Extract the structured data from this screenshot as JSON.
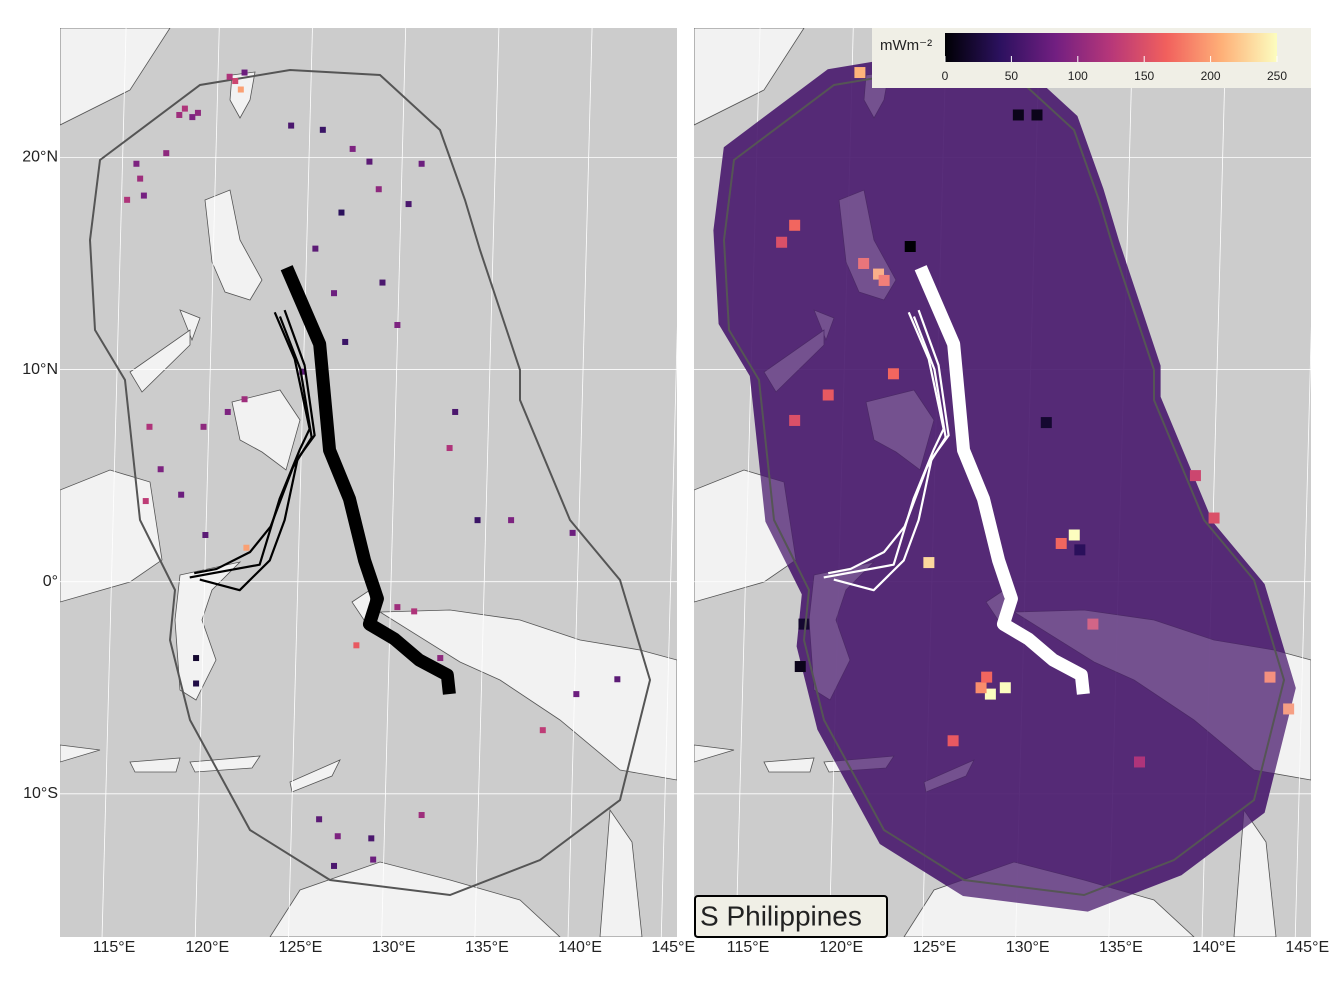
{
  "chart_data": {
    "type": "map",
    "region_label": "S Philippines",
    "xlim": [
      112.1,
      145.2
    ],
    "ylim": [
      -16.75,
      26.1
    ],
    "xticks": [
      {
        "value": 115,
        "label": "115°E"
      },
      {
        "value": 120,
        "label": "120°E"
      },
      {
        "value": 125,
        "label": "125°E"
      },
      {
        "value": 130,
        "label": "130°E"
      },
      {
        "value": 135,
        "label": "135°E"
      },
      {
        "value": 140,
        "label": "140°E"
      },
      {
        "value": 145,
        "label": "145°E"
      }
    ],
    "yticks": [
      {
        "value": 20,
        "label": "20°N"
      },
      {
        "value": 10,
        "label": "10°N"
      },
      {
        "value": 0,
        "label": "0°"
      },
      {
        "value": -10,
        "label": "10°S"
      }
    ],
    "grid": true,
    "colorbar": {
      "label": "mWm⁻²",
      "lim": [
        0,
        250
      ],
      "ticks": [
        0,
        50,
        100,
        150,
        200,
        250
      ],
      "colormap": [
        "#000004",
        "#2c115f",
        "#721f81",
        "#b73779",
        "#f1605d",
        "#feb078",
        "#fcfdbf"
      ]
    },
    "tracks": [
      {
        "lon": [
          124.26,
          126.03,
          126.56,
          127.63,
          128.44,
          129.13,
          128.7,
          130.04,
          131.38,
          132.88,
          132.99
        ],
        "lat": [
          14.8,
          11.2,
          6.2,
          3.9,
          1.0,
          -0.8,
          -2.0,
          -2.7,
          -3.7,
          -4.4,
          -5.3
        ]
      },
      {
        "lon": [
          123.62,
          124.69,
          125.49,
          124.95,
          123.88,
          122.81,
          119.06
        ],
        "lat": [
          12.7,
          10.5,
          7.2,
          6.2,
          3.9,
          0.8,
          0.2
        ]
      },
      {
        "lon": [
          124.15,
          125.22,
          125.76,
          124.85,
          124.15,
          123.35,
          121.74,
          119.6
        ],
        "lat": [
          12.8,
          10.2,
          6.9,
          5.8,
          2.9,
          1.0,
          -0.4,
          0.1
        ]
      },
      {
        "lon": [
          123.9,
          125.0,
          125.6,
          124.6,
          123.4,
          122.3,
          120.5,
          119.3
        ],
        "lat": [
          12.5,
          10.0,
          6.8,
          5.4,
          2.6,
          1.4,
          0.6,
          0.4
        ]
      }
    ],
    "points": [
      {
        "lon": 118.5,
        "lat": 22.0,
        "value": 110
      },
      {
        "lon": 118.8,
        "lat": 22.3,
        "value": 120
      },
      {
        "lon": 119.2,
        "lat": 21.9,
        "value": 90
      },
      {
        "lon": 119.5,
        "lat": 22.1,
        "value": 100
      },
      {
        "lon": 121.5,
        "lat": 23.6,
        "value": 140
      },
      {
        "lon": 121.8,
        "lat": 23.2,
        "value": 200
      },
      {
        "lon": 121.2,
        "lat": 23.8,
        "value": 120
      },
      {
        "lon": 122.0,
        "lat": 24.0,
        "value": 80
      },
      {
        "lon": 116.2,
        "lat": 19.7,
        "value": 90
      },
      {
        "lon": 116.4,
        "lat": 19.0,
        "value": 110
      },
      {
        "lon": 117.8,
        "lat": 20.2,
        "value": 100
      },
      {
        "lon": 116.6,
        "lat": 18.2,
        "value": 85
      },
      {
        "lon": 115.7,
        "lat": 18.0,
        "value": 120
      },
      {
        "lon": 124.5,
        "lat": 21.5,
        "value": 60
      },
      {
        "lon": 126.2,
        "lat": 21.3,
        "value": 50
      },
      {
        "lon": 127.8,
        "lat": 20.4,
        "value": 90
      },
      {
        "lon": 128.7,
        "lat": 19.8,
        "value": 70
      },
      {
        "lon": 129.2,
        "lat": 18.5,
        "value": 100
      },
      {
        "lon": 130.8,
        "lat": 17.8,
        "value": 60
      },
      {
        "lon": 131.5,
        "lat": 19.7,
        "value": 80
      },
      {
        "lon": 127.2,
        "lat": 17.4,
        "value": 40
      },
      {
        "lon": 125.8,
        "lat": 15.7,
        "value": 70
      },
      {
        "lon": 126.8,
        "lat": 13.6,
        "value": 80
      },
      {
        "lon": 129.4,
        "lat": 14.1,
        "value": 60
      },
      {
        "lon": 130.2,
        "lat": 12.1,
        "value": 90
      },
      {
        "lon": 127.4,
        "lat": 11.3,
        "value": 50
      },
      {
        "lon": 125.1,
        "lat": 9.9,
        "value": 70
      },
      {
        "lon": 122.0,
        "lat": 8.6,
        "value": 110
      },
      {
        "lon": 121.1,
        "lat": 8.0,
        "value": 90
      },
      {
        "lon": 119.8,
        "lat": 7.3,
        "value": 100
      },
      {
        "lon": 116.9,
        "lat": 7.3,
        "value": 120
      },
      {
        "lon": 117.5,
        "lat": 5.3,
        "value": 90
      },
      {
        "lon": 118.6,
        "lat": 4.1,
        "value": 80
      },
      {
        "lon": 116.7,
        "lat": 3.8,
        "value": 130
      },
      {
        "lon": 119.9,
        "lat": 2.2,
        "value": 70
      },
      {
        "lon": 133.3,
        "lat": 8.0,
        "value": 60
      },
      {
        "lon": 133.0,
        "lat": 6.3,
        "value": 120
      },
      {
        "lon": 134.5,
        "lat": 2.9,
        "value": 50
      },
      {
        "lon": 136.3,
        "lat": 2.9,
        "value": 90
      },
      {
        "lon": 139.6,
        "lat": 2.3,
        "value": 80
      },
      {
        "lon": 122.1,
        "lat": 1.6,
        "value": 200
      },
      {
        "lon": 119.4,
        "lat": -3.6,
        "value": 20
      },
      {
        "lon": 119.4,
        "lat": -4.8,
        "value": 30
      },
      {
        "lon": 130.2,
        "lat": -1.2,
        "value": 110
      },
      {
        "lon": 131.1,
        "lat": -1.4,
        "value": 120
      },
      {
        "lon": 132.5,
        "lat": -3.6,
        "value": 100
      },
      {
        "lon": 128.0,
        "lat": -3.0,
        "value": 160
      },
      {
        "lon": 139.8,
        "lat": -5.3,
        "value": 80
      },
      {
        "lon": 142.0,
        "lat": -4.6,
        "value": 70
      },
      {
        "lon": 138.0,
        "lat": -7.0,
        "value": 130
      },
      {
        "lon": 126.0,
        "lat": -11.2,
        "value": 70
      },
      {
        "lon": 127.0,
        "lat": -12.0,
        "value": 90
      },
      {
        "lon": 128.8,
        "lat": -12.1,
        "value": 60
      },
      {
        "lon": 131.5,
        "lat": -11.0,
        "value": 110
      },
      {
        "lon": 126.8,
        "lat": -13.4,
        "value": 60
      },
      {
        "lon": 128.9,
        "lat": -13.1,
        "value": 80
      }
    ],
    "cells": [
      {
        "lon": 128.0,
        "lat": -5.3,
        "value": 250
      },
      {
        "lon": 128.8,
        "lat": -5.0,
        "value": 250
      },
      {
        "lon": 127.5,
        "lat": -5.0,
        "value": 190
      },
      {
        "lon": 127.8,
        "lat": -4.5,
        "value": 170
      },
      {
        "lon": 132.5,
        "lat": 2.2,
        "value": 250
      },
      {
        "lon": 132.8,
        "lat": 1.5,
        "value": 40
      },
      {
        "lon": 131.8,
        "lat": 1.8,
        "value": 170
      },
      {
        "lon": 122.0,
        "lat": 14.5,
        "value": 200
      },
      {
        "lon": 122.3,
        "lat": 14.2,
        "value": 170
      },
      {
        "lon": 121.2,
        "lat": 15.0,
        "value": 160
      },
      {
        "lon": 117.5,
        "lat": 16.8,
        "value": 170
      },
      {
        "lon": 116.8,
        "lat": 16.0,
        "value": 150
      },
      {
        "lon": 122.8,
        "lat": 9.8,
        "value": 170
      },
      {
        "lon": 119.3,
        "lat": 8.8,
        "value": 160
      },
      {
        "lon": 117.5,
        "lat": 7.6,
        "value": 150
      },
      {
        "lon": 144.0,
        "lat": -6.0,
        "value": 190
      },
      {
        "lon": 143.0,
        "lat": -4.5,
        "value": 180
      },
      {
        "lon": 124.7,
        "lat": 0.9,
        "value": 230
      },
      {
        "lon": 131.0,
        "lat": 7.5,
        "value": 20
      },
      {
        "lon": 130.5,
        "lat": 22.0,
        "value": 10
      },
      {
        "lon": 129.5,
        "lat": 22.0,
        "value": 10
      },
      {
        "lon": 123.7,
        "lat": 15.8,
        "value": 0
      },
      {
        "lon": 121.0,
        "lat": 24.0,
        "value": 210
      },
      {
        "lon": 118.0,
        "lat": -2.0,
        "value": 20
      },
      {
        "lon": 117.8,
        "lat": -4.0,
        "value": 10
      },
      {
        "lon": 140.0,
        "lat": 3.0,
        "value": 150
      },
      {
        "lon": 139.0,
        "lat": 5.0,
        "value": 140
      },
      {
        "lon": 133.5,
        "lat": -2.0,
        "value": 140
      },
      {
        "lon": 126.0,
        "lat": -7.5,
        "value": 160
      },
      {
        "lon": 136.0,
        "lat": -8.5,
        "value": 120
      }
    ]
  }
}
